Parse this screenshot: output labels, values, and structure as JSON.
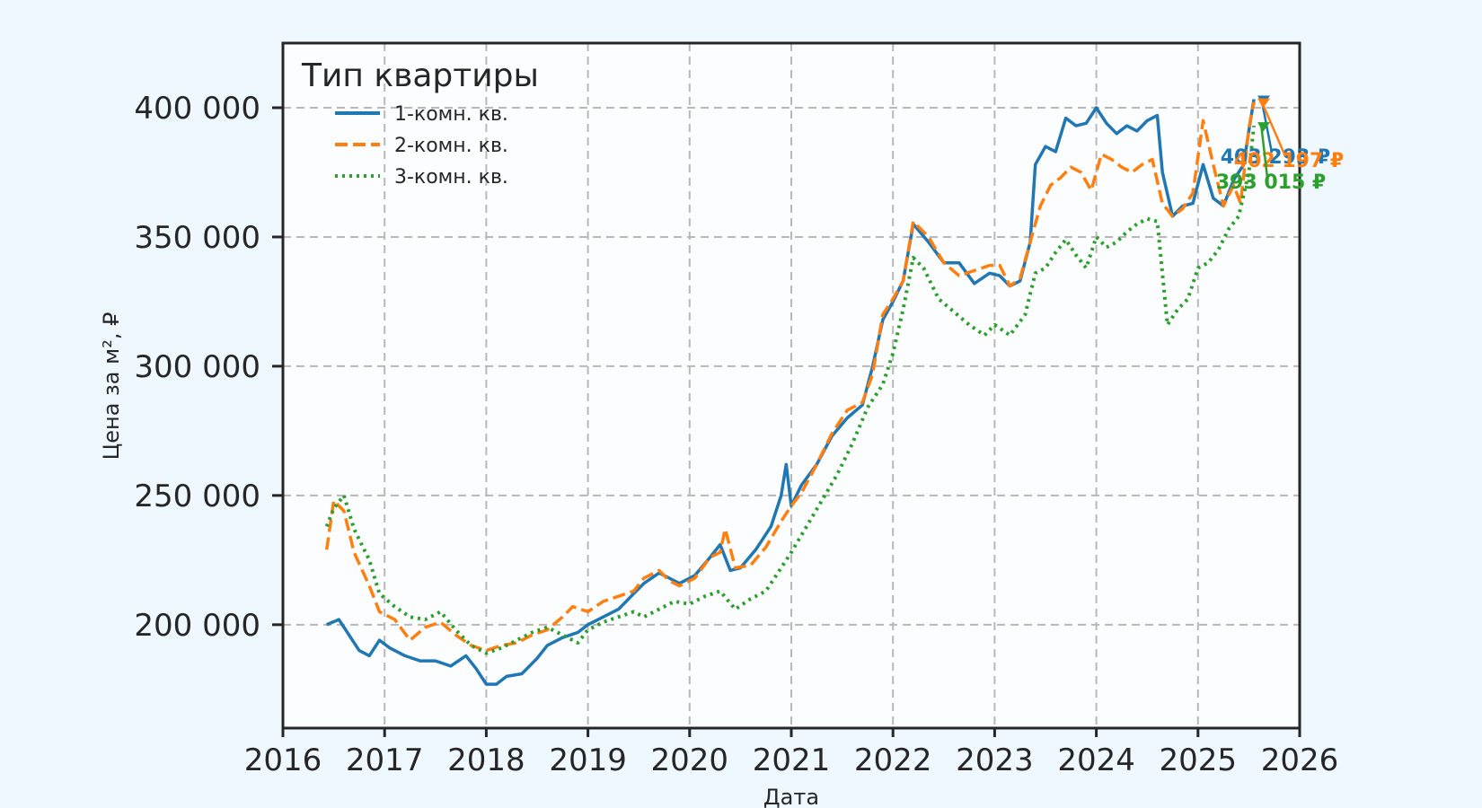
{
  "chart_data": {
    "type": "line",
    "title": "",
    "xlabel": "Дата",
    "ylabel": "Цена за м², ₽",
    "xlim": [
      2016,
      2026
    ],
    "ylim": [
      160000,
      425000
    ],
    "x_ticks": [
      2016,
      2017,
      2018,
      2019,
      2020,
      2021,
      2022,
      2023,
      2024,
      2025,
      2026
    ],
    "x_tick_labels": [
      "2016",
      "2017",
      "2018",
      "2019",
      "2020",
      "2021",
      "2022",
      "2023",
      "2024",
      "2025",
      "2026"
    ],
    "y_ticks": [
      200000,
      250000,
      300000,
      350000,
      400000
    ],
    "y_tick_labels": [
      "200 000",
      "250 000",
      "300 000",
      "350 000",
      "400 000"
    ],
    "grid": true,
    "legend": {
      "title": "Тип квартиры",
      "placement": "top-left"
    },
    "series": [
      {
        "name": "1-комн. кв.",
        "color": "#1f77b4",
        "style": "solid",
        "x": [
          2016.43,
          2016.55,
          2016.65,
          2016.75,
          2016.85,
          2016.95,
          2017.05,
          2017.2,
          2017.35,
          2017.5,
          2017.65,
          2017.8,
          2017.9,
          2018.0,
          2018.1,
          2018.2,
          2018.35,
          2018.5,
          2018.6,
          2018.75,
          2018.9,
          2019.0,
          2019.15,
          2019.3,
          2019.45,
          2019.55,
          2019.7,
          2019.8,
          2019.9,
          2020.05,
          2020.2,
          2020.3,
          2020.4,
          2020.5,
          2020.65,
          2020.8,
          2020.9,
          2020.95,
          2021.0,
          2021.1,
          2021.25,
          2021.4,
          2021.55,
          2021.7,
          2021.8,
          2021.9,
          2022.0,
          2022.1,
          2022.2,
          2022.35,
          2022.5,
          2022.65,
          2022.8,
          2022.95,
          2023.05,
          2023.15,
          2023.25,
          2023.35,
          2023.4,
          2023.5,
          2023.6,
          2023.7,
          2023.8,
          2023.9,
          2024.0,
          2024.1,
          2024.2,
          2024.3,
          2024.4,
          2024.5,
          2024.6,
          2024.65,
          2024.75,
          2024.85,
          2024.95,
          2025.05,
          2025.15,
          2025.25,
          2025.35,
          2025.45,
          2025.5,
          2025.55
        ],
        "values": [
          200000,
          202000,
          196000,
          190000,
          188000,
          194000,
          191000,
          188000,
          186000,
          186000,
          184000,
          188000,
          183000,
          177000,
          177000,
          180000,
          181000,
          187000,
          192000,
          195000,
          197000,
          200000,
          203000,
          206000,
          212000,
          216000,
          220000,
          218000,
          216000,
          219000,
          226000,
          231000,
          221000,
          222000,
          229000,
          238000,
          250000,
          262000,
          246000,
          254000,
          262000,
          273000,
          280000,
          285000,
          300000,
          318000,
          325000,
          333000,
          355000,
          348000,
          340000,
          340000,
          332000,
          336000,
          335000,
          331000,
          333000,
          348000,
          378000,
          385000,
          383000,
          396000,
          393000,
          394000,
          400000,
          394000,
          390000,
          393000,
          391000,
          395000,
          397000,
          375000,
          358000,
          362000,
          363000,
          378000,
          365000,
          362000,
          372000,
          378000,
          391000,
          403293
        ]
      },
      {
        "name": "2-комн. кв.",
        "color": "#ff7f0e",
        "style": "dashed",
        "x": [
          2016.43,
          2016.5,
          2016.6,
          2016.7,
          2016.85,
          2016.95,
          2017.1,
          2017.25,
          2017.4,
          2017.55,
          2017.7,
          2017.85,
          2018.0,
          2018.15,
          2018.3,
          2018.45,
          2018.6,
          2018.75,
          2018.85,
          2019.0,
          2019.15,
          2019.3,
          2019.45,
          2019.55,
          2019.7,
          2019.8,
          2019.9,
          2020.05,
          2020.2,
          2020.3,
          2020.35,
          2020.45,
          2020.6,
          2020.75,
          2020.9,
          2021.0,
          2021.1,
          2021.25,
          2021.4,
          2021.55,
          2021.7,
          2021.8,
          2021.9,
          2022.0,
          2022.1,
          2022.2,
          2022.35,
          2022.5,
          2022.65,
          2022.8,
          2022.95,
          2023.05,
          2023.15,
          2023.25,
          2023.35,
          2023.45,
          2023.55,
          2023.65,
          2023.75,
          2023.85,
          2023.95,
          2024.05,
          2024.15,
          2024.25,
          2024.35,
          2024.45,
          2024.55,
          2024.65,
          2024.75,
          2024.85,
          2024.95,
          2025.05,
          2025.15,
          2025.25,
          2025.35,
          2025.42,
          2025.5,
          2025.55
        ],
        "values": [
          229000,
          248000,
          244000,
          228000,
          215000,
          205000,
          202000,
          194000,
          199000,
          201000,
          196000,
          192000,
          190000,
          192000,
          193000,
          196000,
          198000,
          203000,
          207000,
          205000,
          209000,
          211000,
          213000,
          218000,
          221000,
          217000,
          215000,
          218000,
          226000,
          228000,
          237000,
          222000,
          223000,
          230000,
          240000,
          246000,
          251000,
          262000,
          274000,
          283000,
          286000,
          297000,
          320000,
          326000,
          333000,
          356000,
          350000,
          340000,
          335000,
          337000,
          339000,
          339000,
          331000,
          334000,
          348000,
          362000,
          370000,
          373000,
          377000,
          375000,
          368000,
          382000,
          380000,
          377000,
          375000,
          378000,
          380000,
          363000,
          358000,
          361000,
          367000,
          395000,
          378000,
          362000,
          370000,
          363000,
          392000,
          402197
        ]
      },
      {
        "name": "3-комн. кв.",
        "color": "#2ca02c",
        "style": "dotted",
        "x": [
          2016.43,
          2016.5,
          2016.6,
          2016.7,
          2016.85,
          2016.95,
          2017.1,
          2017.25,
          2017.4,
          2017.55,
          2017.7,
          2017.85,
          2018.0,
          2018.15,
          2018.3,
          2018.45,
          2018.6,
          2018.75,
          2018.9,
          2019.0,
          2019.15,
          2019.3,
          2019.45,
          2019.55,
          2019.7,
          2019.85,
          2020.0,
          2020.15,
          2020.3,
          2020.45,
          2020.6,
          2020.75,
          2020.9,
          2021.0,
          2021.15,
          2021.3,
          2021.45,
          2021.6,
          2021.75,
          2021.9,
          2022.0,
          2022.1,
          2022.2,
          2022.3,
          2022.45,
          2022.6,
          2022.75,
          2022.9,
          2023.0,
          2023.15,
          2023.3,
          2023.4,
          2023.5,
          2023.6,
          2023.7,
          2023.8,
          2023.9,
          2024.0,
          2024.1,
          2024.2,
          2024.3,
          2024.4,
          2024.5,
          2024.6,
          2024.7,
          2024.8,
          2024.9,
          2025.0,
          2025.1,
          2025.2,
          2025.3,
          2025.4,
          2025.5,
          2025.55
        ],
        "values": [
          238000,
          245000,
          250000,
          237000,
          225000,
          212000,
          207000,
          203000,
          202000,
          205000,
          198000,
          192000,
          189000,
          191000,
          194000,
          197000,
          199000,
          196000,
          193000,
          198000,
          201000,
          203000,
          205000,
          203000,
          206000,
          209000,
          208000,
          211000,
          213000,
          206000,
          210000,
          213000,
          222000,
          228000,
          238000,
          248000,
          258000,
          270000,
          284000,
          293000,
          305000,
          322000,
          342000,
          338000,
          326000,
          321000,
          316000,
          312000,
          316000,
          312000,
          320000,
          336000,
          338000,
          344000,
          349000,
          343000,
          338000,
          350000,
          346000,
          348000,
          352000,
          355000,
          357000,
          356000,
          316000,
          322000,
          326000,
          338000,
          340000,
          345000,
          353000,
          358000,
          375000,
          393015
        ]
      }
    ],
    "annotations": [
      {
        "text": "403 293 ₽",
        "x": 2025.55,
        "y": 403293,
        "color": "#1f77b4"
      },
      {
        "text": "402 197 ₽",
        "x": 2025.55,
        "y": 402197,
        "color": "#ff7f0e"
      },
      {
        "text": "393 015 ₽",
        "x": 2025.55,
        "y": 393015,
        "color": "#2ca02c"
      }
    ]
  }
}
